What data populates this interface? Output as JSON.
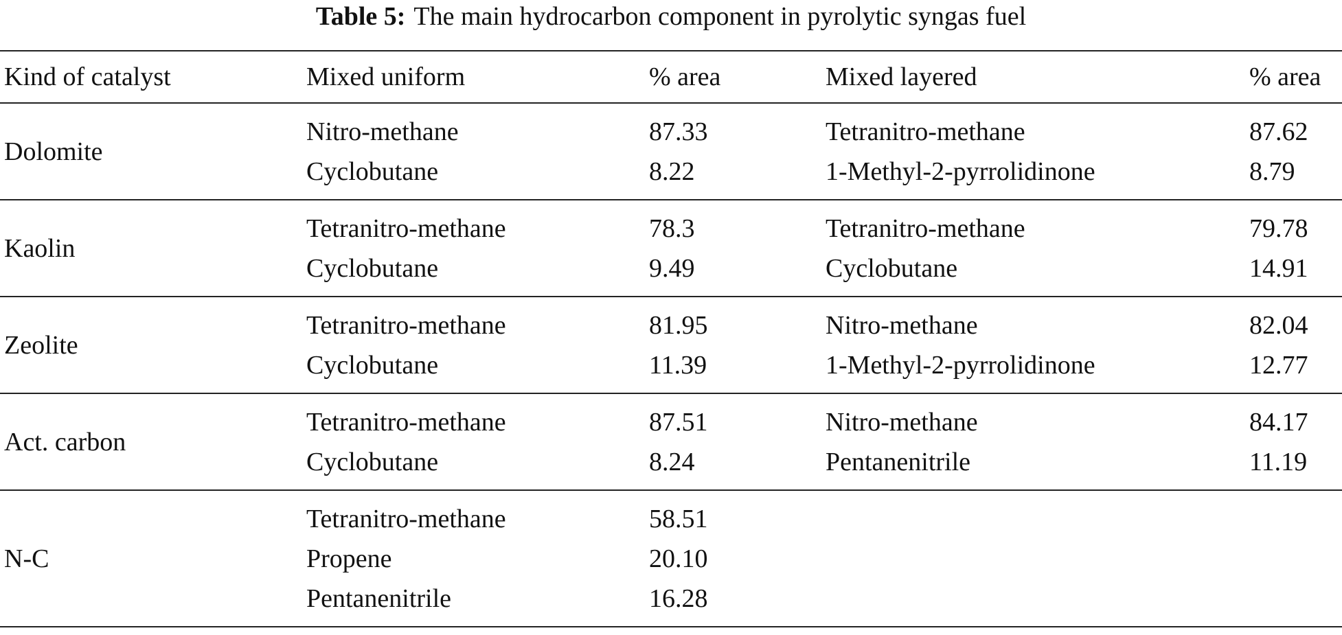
{
  "title": {
    "label": "Table 5:",
    "text": "The main hydrocarbon component in pyrolytic syngas fuel"
  },
  "table": {
    "header": [
      "Kind of catalyst",
      "Mixed uniform",
      "% area",
      "Mixed layered",
      "% area"
    ],
    "groups": [
      {
        "catalyst": "Dolomite",
        "rows": [
          [
            "Nitro-methane",
            "87.33",
            "Tetranitro-methane",
            "87.62"
          ],
          [
            "Cyclobutane",
            "8.22",
            "1-Methyl-2-pyrrolidinone",
            "8.79"
          ]
        ]
      },
      {
        "catalyst": "Kaolin",
        "rows": [
          [
            "Tetranitro-methane",
            "78.3",
            "Tetranitro-methane",
            "79.78"
          ],
          [
            "Cyclobutane",
            "9.49",
            "Cyclobutane",
            "14.91"
          ]
        ]
      },
      {
        "catalyst": "Zeolite",
        "rows": [
          [
            "Tetranitro-methane",
            "81.95",
            "Nitro-methane",
            "82.04"
          ],
          [
            "Cyclobutane",
            "11.39",
            "1-Methyl-2-pyrrolidinone",
            "12.77"
          ]
        ]
      },
      {
        "catalyst": "Act. carbon",
        "rows": [
          [
            "Tetranitro-methane",
            "87.51",
            "Nitro-methane",
            "84.17"
          ],
          [
            "Cyclobutane",
            "8.24",
            "Pentanenitrile",
            "11.19"
          ]
        ]
      },
      {
        "catalyst": "N-C",
        "rows": [
          [
            "Tetranitro-methane",
            "58.51"
          ],
          [
            "Propene",
            "20.10"
          ],
          [
            "Pentanenitrile",
            "16.28"
          ]
        ]
      }
    ]
  }
}
